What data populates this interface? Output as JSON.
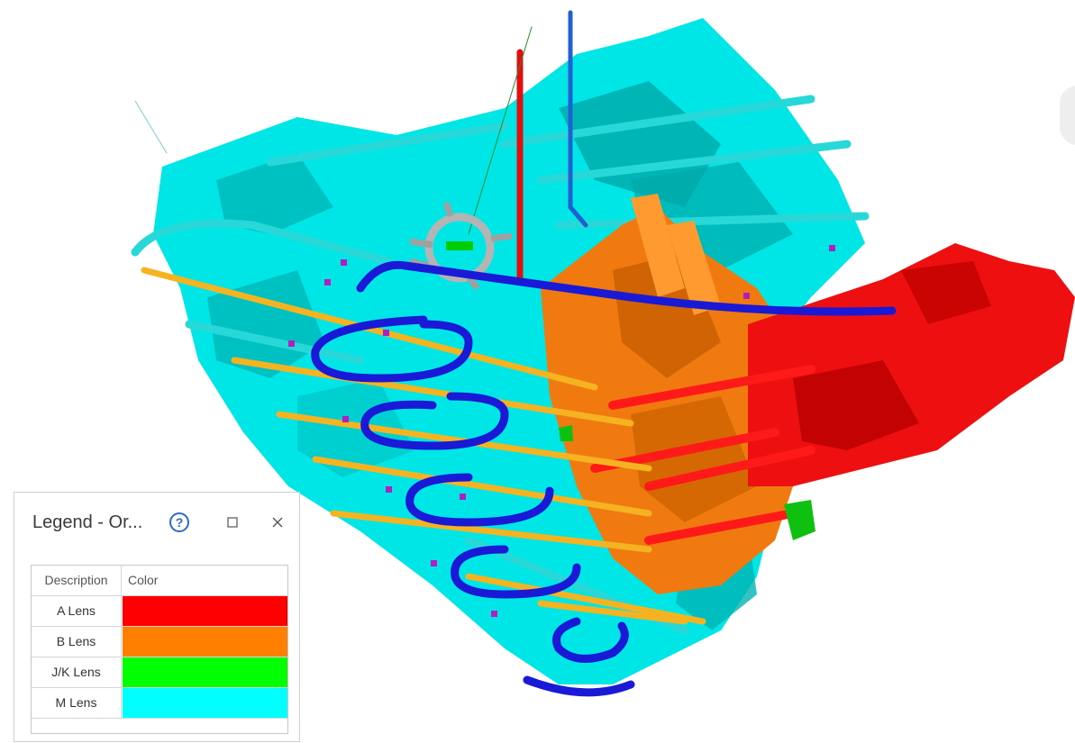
{
  "viewport": {
    "background": "#ffffff"
  },
  "model_colors": {
    "a_lens": "#ff0000",
    "b_lens": "#ff8000",
    "jk_lens": "#00ff00",
    "m_lens": "#00ffff",
    "drift_blue": "#1a1ad6",
    "level_yellow": "#f5b321",
    "collar_grey": "#b4b4b4",
    "marker_magenta": "#b020c0"
  },
  "legend": {
    "title": "Legend - Or...",
    "help_icon": "help-circle-icon",
    "restore_icon": "restore-window-icon",
    "close_icon": "close-icon",
    "columns": {
      "description": "Description",
      "color": "Color"
    },
    "rows": [
      {
        "description": "A Lens",
        "color": "#ff0000"
      },
      {
        "description": "B Lens",
        "color": "#ff8000"
      },
      {
        "description": "J/K Lens",
        "color": "#00ff00"
      },
      {
        "description": "M Lens",
        "color": "#00ffff"
      }
    ]
  }
}
